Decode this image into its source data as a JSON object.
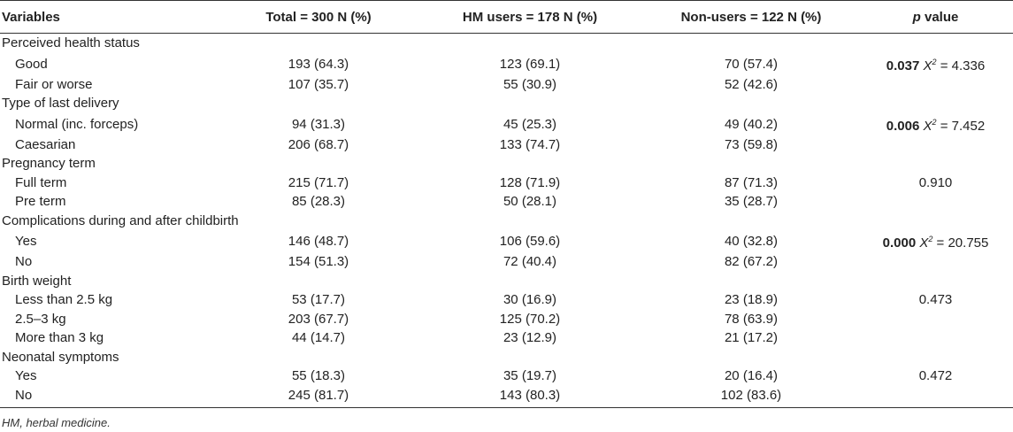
{
  "headers": {
    "variables": "Variables",
    "total": "Total = 300 N (%)",
    "hm": "HM users = 178 N (%)",
    "non": "Non-users = 122 N (%)",
    "p_italic": "p",
    "p_rest": " value"
  },
  "rows": [
    {
      "type": "group",
      "label": "Perceived health status"
    },
    {
      "type": "sub",
      "label": "Good",
      "total": "193 (64.3)",
      "hm": "123 (69.1)",
      "non": "70 (57.4)",
      "p_bold": "0.037",
      "chi": "X",
      "chi_sup": "2",
      "chi_val": " = 4.336",
      "p_plain": ""
    },
    {
      "type": "sub",
      "label": "Fair or worse",
      "total": "107 (35.7)",
      "hm": "55 (30.9)",
      "non": "52 (42.6)",
      "p_bold": "",
      "chi": "",
      "chi_sup": "",
      "chi_val": "",
      "p_plain": ""
    },
    {
      "type": "group",
      "label": "Type of last delivery"
    },
    {
      "type": "sub",
      "label": "Normal (inc. forceps)",
      "total": "94 (31.3)",
      "hm": "45 (25.3)",
      "non": "49 (40.2)",
      "p_bold": "0.006",
      "chi": "X",
      "chi_sup": "2",
      "chi_val": " = 7.452",
      "p_plain": ""
    },
    {
      "type": "sub",
      "label": "Caesarian",
      "total": "206 (68.7)",
      "hm": "133 (74.7)",
      "non": "73 (59.8)",
      "p_bold": "",
      "chi": "",
      "chi_sup": "",
      "chi_val": "",
      "p_plain": ""
    },
    {
      "type": "group",
      "label": "Pregnancy term"
    },
    {
      "type": "sub",
      "label": "Full term",
      "total": "215 (71.7)",
      "hm": "128 (71.9)",
      "non": "87 (71.3)",
      "p_bold": "",
      "chi": "",
      "chi_sup": "",
      "chi_val": "",
      "p_plain": "0.910"
    },
    {
      "type": "sub",
      "label": "Pre term",
      "total": "85 (28.3)",
      "hm": "50 (28.1)",
      "non": "35 (28.7)",
      "p_bold": "",
      "chi": "",
      "chi_sup": "",
      "chi_val": "",
      "p_plain": ""
    },
    {
      "type": "group",
      "label": "Complications during and after childbirth"
    },
    {
      "type": "sub",
      "label": "Yes",
      "total": "146 (48.7)",
      "hm": "106 (59.6)",
      "non": "40 (32.8)",
      "p_bold": "0.000",
      "chi": "X",
      "chi_sup": "2",
      "chi_val": " = 20.755",
      "p_plain": ""
    },
    {
      "type": "sub",
      "label": "No",
      "total": "154 (51.3)",
      "hm": "72 (40.4)",
      "non": "82 (67.2)",
      "p_bold": "",
      "chi": "",
      "chi_sup": "",
      "chi_val": "",
      "p_plain": ""
    },
    {
      "type": "group",
      "label": "Birth weight"
    },
    {
      "type": "sub",
      "label": "Less than 2.5 kg",
      "total": "53 (17.7)",
      "hm": "30 (16.9)",
      "non": "23 (18.9)",
      "p_bold": "",
      "chi": "",
      "chi_sup": "",
      "chi_val": "",
      "p_plain": "0.473"
    },
    {
      "type": "sub",
      "label": "2.5–3 kg",
      "total": "203 (67.7)",
      "hm": "125 (70.2)",
      "non": "78 (63.9)",
      "p_bold": "",
      "chi": "",
      "chi_sup": "",
      "chi_val": "",
      "p_plain": ""
    },
    {
      "type": "sub",
      "label": "More than 3 kg",
      "total": "44 (14.7)",
      "hm": "23 (12.9)",
      "non": "21 (17.2)",
      "p_bold": "",
      "chi": "",
      "chi_sup": "",
      "chi_val": "",
      "p_plain": ""
    },
    {
      "type": "group",
      "label": "Neonatal symptoms"
    },
    {
      "type": "sub",
      "label": "Yes",
      "total": "55 (18.3)",
      "hm": "35 (19.7)",
      "non": "20 (16.4)",
      "p_bold": "",
      "chi": "",
      "chi_sup": "",
      "chi_val": "",
      "p_plain": "0.472"
    },
    {
      "type": "sub",
      "label": "No",
      "total": "245 (81.7)",
      "hm": "143 (80.3)",
      "non": "102 (83.6)",
      "p_bold": "",
      "chi": "",
      "chi_sup": "",
      "chi_val": "",
      "p_plain": ""
    }
  ],
  "footnote": "HM, herbal medicine."
}
